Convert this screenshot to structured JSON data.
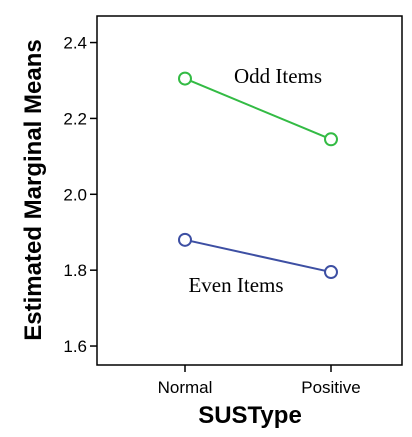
{
  "chart_data": {
    "type": "line",
    "xlabel": "SUSType",
    "ylabel": "Estimated Marginal Means",
    "categories": [
      "Normal",
      "Positive"
    ],
    "ylim": [
      1.55,
      2.47
    ],
    "yticks": [
      "1.6",
      "1.8",
      "2.0",
      "2.2",
      "2.4"
    ],
    "grid": false,
    "legend": "none",
    "series": [
      {
        "name": "Odd Items",
        "values": [
          2.305,
          2.145
        ],
        "color": "#33bb44",
        "marker": "circle-open"
      },
      {
        "name": "Even Items",
        "values": [
          1.88,
          1.795
        ],
        "color": "#3d4fa3",
        "marker": "circle-open"
      }
    ]
  }
}
